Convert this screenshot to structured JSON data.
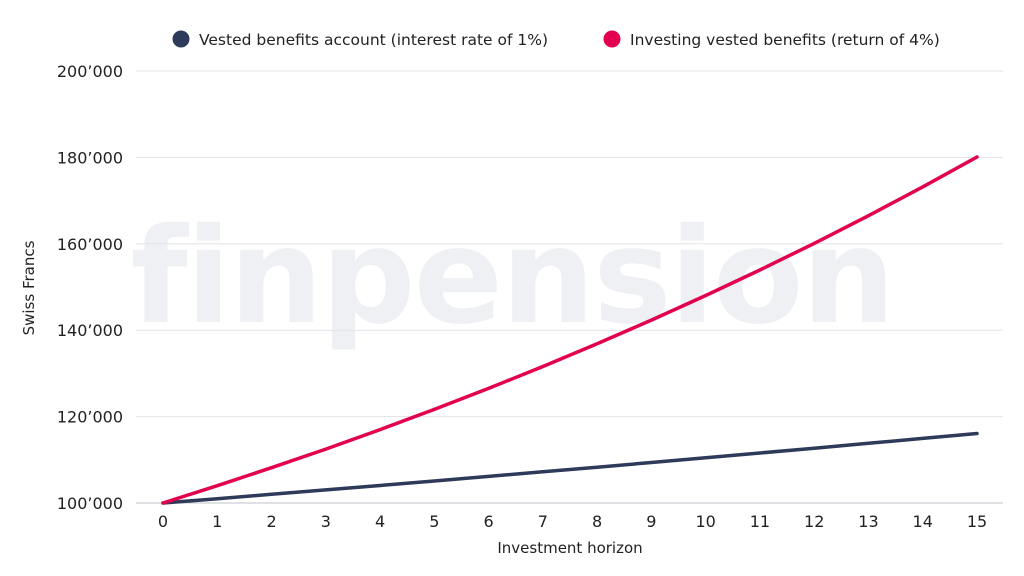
{
  "watermark": "finpension",
  "chart_data": {
    "type": "line",
    "title": "",
    "xlabel": "Investment horizon",
    "ylabel": "Swiss Francs",
    "x": [
      0,
      1,
      2,
      3,
      4,
      5,
      6,
      7,
      8,
      9,
      10,
      11,
      12,
      13,
      14,
      15
    ],
    "y_ticks": [
      "100’000",
      "120’000",
      "140’000",
      "160’000",
      "180’000",
      "200’000"
    ],
    "y_tick_values": [
      100000,
      120000,
      140000,
      160000,
      180000,
      200000
    ],
    "ylim": [
      100000,
      200000
    ],
    "xlim": [
      0,
      15
    ],
    "grid": "horizontal",
    "legend_position": "top",
    "series": [
      {
        "name": "Vested benefits account (interest rate of 1%)",
        "color": "#2e3a59",
        "values": [
          100000,
          101000,
          102010,
          103030,
          104060,
          105101,
          106152,
          107214,
          108286,
          109369,
          110462,
          111567,
          112683,
          113809,
          114947,
          116097
        ]
      },
      {
        "name": "Investing vested benefits (return of 4%)",
        "color": "#e3004f",
        "values": [
          100000,
          104000,
          108160,
          112486,
          116986,
          121665,
          126532,
          131593,
          136857,
          142331,
          148024,
          153945,
          160103,
          166507,
          173168,
          180094
        ]
      }
    ]
  }
}
